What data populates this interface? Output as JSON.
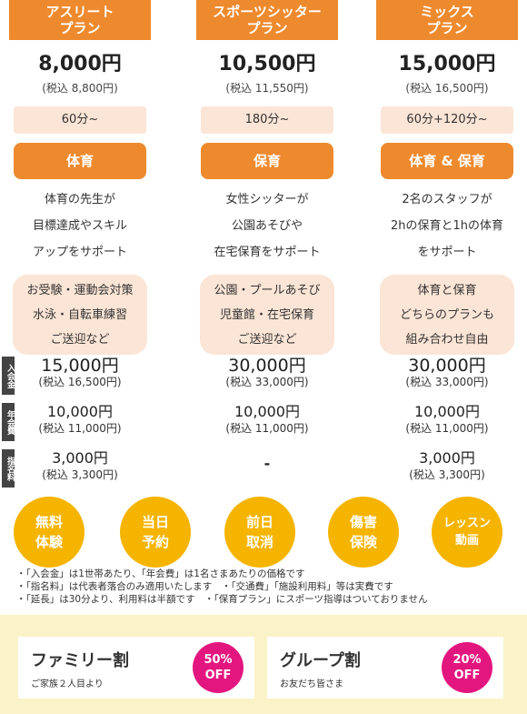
{
  "plans": [
    {
      "name": "アスリート\nプラン",
      "price": "8,000円",
      "tax_price": "(税込 8,800円)",
      "duration": "60分~",
      "category": "体育",
      "description": "体育の先生が\n目標達成やスキル\nアップをサポート",
      "examples": "お受験・運動会対策\n水泳・自転車練習\nご送迎など",
      "admission_fee": "15,000円",
      "admission_fee_tax": "(税込 16,500円)",
      "annual_fee": "10,000円",
      "annual_fee_tax": "(税込 11,000円)",
      "nomination_fee": "3,000円",
      "nomination_fee_tax": "(税込 3,300円)"
    },
    {
      "name": "スポーツシッター\nプラン",
      "price": "10,500円",
      "tax_price": "(税込 11,550円)",
      "duration": "180分~",
      "category": "保育",
      "description": "女性シッターが\n公園あそびや\n在宅保育をサポート",
      "examples": "公園・プールあそび\n児童館・在宅保育\nご送迎など",
      "admission_fee": "30,000円",
      "admission_fee_tax": "(税込 33,000円)",
      "annual_fee": "10,000円",
      "annual_fee_tax": "(税込 11,000円)",
      "nomination_fee": "-",
      "nomination_fee_tax": ""
    },
    {
      "name": "ミックス\nプラン",
      "price": "15,000円",
      "tax_price": "(税込 16,500円)",
      "duration": "60分+120分~",
      "category": "体育 & 保育",
      "description": "2名のスタッフが\n2hの保育と1hの体育\nをサポート",
      "examples": "体育と保育\nどちらのプランも\n組み合わせ自由",
      "admission_fee": "30,000円",
      "admission_fee_tax": "(税込 33,000円)",
      "annual_fee": "10,000円",
      "annual_fee_tax": "(税込 11,000円)",
      "nomination_fee": "3,000円",
      "nomination_fee_tax": "(税込 3,300円)"
    }
  ],
  "fee_labels": {
    "admission": "入会金",
    "annual": "年会費",
    "nomination": "指名料"
  },
  "badges": [
    "無料\n体験",
    "当日\n予約",
    "前日\n取消",
    "傷害\n保険",
    "レッスン\n動画"
  ],
  "notes": [
    "・「入会金」は1世帯あたり、「年会費」は1名さまあたりの価格です",
    "・「指名料」は代表者落合のみ適用いたします　・「交通費」「施設利用料」等は実費です",
    "・「延長」は30分より、利用料は半額です　・「保育プラン」にスポーツ指導はついておりません"
  ],
  "discounts": [
    {
      "title": "ファミリー割",
      "subtitle": "ご家族２人目より",
      "badge": "50%\nOFF"
    },
    {
      "title": "グループ割",
      "subtitle": "お友だち皆さま",
      "badge": "20%\nOFF"
    }
  ],
  "colors": {
    "orange": "#ee8a2e",
    "peach": "#fbe5d6",
    "gold": "#f5b400",
    "magenta": "#e3167f",
    "cream": "#fbf3c8"
  }
}
